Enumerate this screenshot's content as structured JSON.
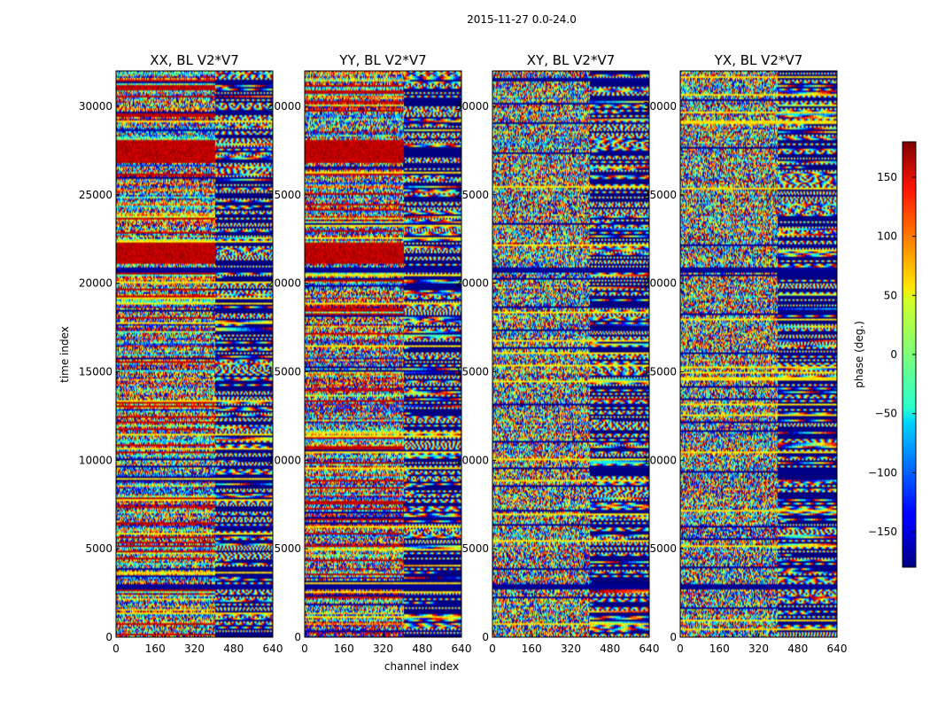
{
  "chart_data": {
    "type": "heatmap",
    "title": "2015-11-27 0.0-24.0",
    "xlabel": "channel index",
    "ylabel": "time index",
    "colorbar_label": "phase (deg.)",
    "colormap": "jet",
    "xlim": [
      0,
      640
    ],
    "ylim": [
      0,
      32000
    ],
    "clim": [
      -180,
      180
    ],
    "xticks": [
      "0",
      "160",
      "320",
      "480",
      "640"
    ],
    "yticks": [
      "0",
      "5000",
      "10000",
      "15000",
      "20000",
      "25000",
      "30000"
    ],
    "colorbar_ticks": [
      "150",
      "100",
      "50",
      "0",
      "−50",
      "−100",
      "−150"
    ],
    "colorbar_tick_values": [
      150,
      100,
      50,
      0,
      -50,
      -100,
      -150
    ],
    "panels": [
      {
        "title": "XX, BL V2*V7"
      },
      {
        "title": "YY, BL V2*V7"
      },
      {
        "title": "XY, BL V2*V7"
      },
      {
        "title": "YX, BL V2*V7"
      }
    ]
  }
}
